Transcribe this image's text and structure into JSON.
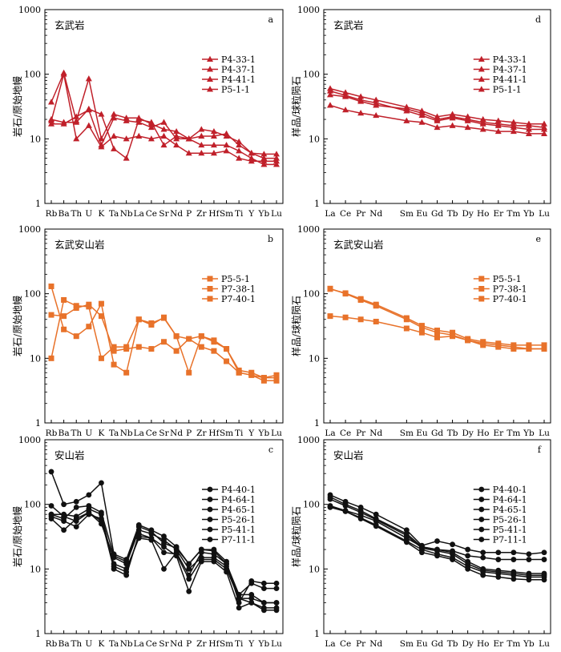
{
  "colors": {
    "red": "#c0202a",
    "orange": "#e8722a",
    "black": "#111111"
  },
  "chart_data": [
    {
      "id": "a",
      "type": "line",
      "panel_label": "a",
      "title": "玄武岩",
      "ylabel": "岩石/原始地幔",
      "yscale": "log",
      "ylim": [
        1,
        1000
      ],
      "yticks": [
        "1",
        "10",
        "100",
        "1000"
      ],
      "categories": [
        "Rb",
        "Ba",
        "Th",
        "U",
        "K",
        "Ta",
        "Nb",
        "La",
        "Ce",
        "Sr",
        "Nd",
        "P",
        "Zr",
        "Hf",
        "Sm",
        "Ti",
        "Y",
        "Yb",
        "Lu"
      ],
      "color": "red",
      "marker": "triangle",
      "legend_position": "top-right",
      "series": [
        {
          "name": "P4-33-1",
          "values": [
            37,
            105,
            19,
            85,
            10,
            24,
            21,
            21,
            17,
            14,
            13,
            10,
            14,
            13,
            11,
            9,
            6,
            5.8,
            5.8
          ]
        },
        {
          "name": "P4-37-1",
          "values": [
            19,
            100,
            10,
            16,
            7.5,
            11,
            10,
            11,
            10,
            11,
            8,
            6,
            6,
            6,
            6.5,
            5,
            4.5,
            4.5,
            4.5
          ]
        },
        {
          "name": "P4-41-1",
          "values": [
            20,
            18,
            18,
            29,
            24,
            7,
            5,
            20,
            18,
            8,
            11,
            10,
            8,
            8,
            8,
            6.5,
            5,
            4,
            4
          ]
        },
        {
          "name": "P5-1-1",
          "values": [
            17,
            17,
            22,
            28,
            8,
            21,
            19,
            18,
            15,
            18,
            10,
            10,
            11,
            11,
            12,
            8,
            6,
            5,
            5
          ]
        }
      ]
    },
    {
      "id": "d",
      "type": "line",
      "panel_label": "d",
      "title": "玄武岩",
      "ylabel": "样品/球粒陨石",
      "yscale": "log",
      "ylim": [
        1,
        1000
      ],
      "yticks": [
        "1",
        "10",
        "100",
        "1000"
      ],
      "categories": [
        "La",
        "Ce",
        "Pr",
        "Nd",
        "",
        "Sm",
        "Eu",
        "Gd",
        "Tb",
        "Dy",
        "Ho",
        "Er",
        "Tm",
        "Yb",
        "Lu"
      ],
      "color": "red",
      "marker": "triangle",
      "legend_position": "top-right",
      "series": [
        {
          "name": "P4-33-1",
          "values": [
            60,
            52,
            45,
            40,
            null,
            31,
            27,
            22,
            24,
            22,
            20,
            19,
            18,
            17,
            17
          ]
        },
        {
          "name": "P4-37-1",
          "values": [
            33,
            28,
            25,
            23,
            null,
            19,
            18,
            15,
            16,
            15,
            14,
            13,
            13,
            12,
            12
          ]
        },
        {
          "name": "P4-41-1",
          "values": [
            55,
            47,
            40,
            36,
            null,
            27,
            23,
            19,
            21,
            19,
            17,
            16,
            15,
            14,
            14
          ]
        },
        {
          "name": "P5-1-1",
          "values": [
            48,
            45,
            38,
            33,
            null,
            29,
            25,
            20,
            22,
            20,
            18,
            17,
            16,
            16,
            15
          ]
        }
      ]
    },
    {
      "id": "b",
      "type": "line",
      "panel_label": "b",
      "title": "玄武安山岩",
      "ylabel": "岩石/原始地幔",
      "yscale": "log",
      "ylim": [
        1,
        1000
      ],
      "yticks": [
        "1",
        "10",
        "100",
        "1000"
      ],
      "categories": [
        "Rb",
        "Ba",
        "Th",
        "U",
        "K",
        "Ta",
        "Nb",
        "La",
        "Ce",
        "Sr",
        "Nd",
        "P",
        "Zr",
        "Hf",
        "Sm",
        "Ti",
        "Y",
        "Yb",
        "Lu"
      ],
      "color": "orange",
      "marker": "square",
      "legend_position": "top-right",
      "series": [
        {
          "name": "P5-5-1",
          "values": [
            130,
            28,
            22,
            31,
            70,
            8,
            6,
            40,
            33,
            43,
            22,
            6,
            22,
            18,
            14,
            6,
            5.5,
            4.5,
            4.5
          ]
        },
        {
          "name": "P7-38-1",
          "values": [
            10,
            80,
            65,
            63,
            10,
            15,
            15,
            40,
            35,
            42,
            22,
            20,
            22,
            19,
            14,
            6.5,
            6,
            5,
            5.5
          ]
        },
        {
          "name": "P7-40-1",
          "values": [
            47,
            45,
            60,
            68,
            45,
            13,
            14,
            15,
            14,
            18,
            13,
            20,
            15,
            13,
            9,
            6,
            5.5,
            5,
            5
          ]
        }
      ]
    },
    {
      "id": "e",
      "type": "line",
      "panel_label": "e",
      "title": "玄武安山岩",
      "ylabel": "样品/球粒陨石",
      "yscale": "log",
      "ylim": [
        1,
        1000
      ],
      "yticks": [
        "1",
        "10",
        "100",
        "1000"
      ],
      "categories": [
        "La",
        "Ce",
        "Pr",
        "Nd",
        "",
        "Sm",
        "Eu",
        "Gd",
        "Tb",
        "Dy",
        "Ho",
        "Er",
        "Tm",
        "Yb",
        "Lu"
      ],
      "color": "orange",
      "marker": "square",
      "legend_position": "top-right",
      "series": [
        {
          "name": "P5-5-1",
          "values": [
            120,
            100,
            80,
            65,
            null,
            40,
            30,
            25,
            23,
            19,
            17,
            16,
            15,
            14,
            14
          ]
        },
        {
          "name": "P7-38-1",
          "values": [
            118,
            102,
            83,
            68,
            null,
            42,
            32,
            27,
            25,
            20,
            18,
            17,
            16,
            16,
            16
          ]
        },
        {
          "name": "P7-40-1",
          "values": [
            45,
            43,
            40,
            37,
            null,
            29,
            25,
            21,
            22,
            19,
            16,
            15,
            14,
            14,
            14
          ]
        }
      ]
    },
    {
      "id": "c",
      "type": "line",
      "panel_label": "c",
      "title": "安山岩",
      "ylabel": "岩石/原始地幔",
      "yscale": "log",
      "ylim": [
        1,
        1000
      ],
      "yticks": [
        "1",
        "10",
        "100",
        "1000"
      ],
      "categories": [
        "Rb",
        "Ba",
        "Th",
        "U",
        "K",
        "Ta",
        "Nb",
        "La",
        "Ce",
        "Sr",
        "Nd",
        "P",
        "Zr",
        "Hf",
        "Sm",
        "Ti",
        "Y",
        "Yb",
        "Lu"
      ],
      "color": "black",
      "marker": "circle",
      "legend_position": "top-right",
      "series": [
        {
          "name": "P4-40-1",
          "values": [
            320,
            100,
            110,
            140,
            215,
            17,
            14,
            48,
            40,
            32,
            22,
            12,
            20,
            20,
            13,
            3,
            6.5,
            6,
            6
          ]
        },
        {
          "name": "P4-64-1",
          "values": [
            65,
            55,
            45,
            70,
            60,
            10,
            8,
            35,
            30,
            22,
            16,
            4.5,
            13,
            13,
            9,
            2.5,
            3,
            2.3,
            2.3
          ]
        },
        {
          "name": "P4-65-1",
          "values": [
            95,
            65,
            55,
            75,
            55,
            12,
            10,
            30,
            28,
            10,
            18,
            8,
            18,
            17,
            12,
            3.5,
            3.5,
            3,
            3
          ]
        },
        {
          "name": "P5-26-1",
          "values": [
            60,
            40,
            60,
            75,
            50,
            15,
            12,
            40,
            35,
            28,
            20,
            10,
            15,
            15,
            11,
            4,
            6,
            5,
            5
          ]
        },
        {
          "name": "P5-41-1",
          "values": [
            70,
            70,
            65,
            85,
            70,
            11,
            9,
            32,
            30,
            18,
            17,
            7,
            14,
            14,
            10,
            3.5,
            3,
            2.5,
            2.5
          ]
        },
        {
          "name": "P7-11-1",
          "values": [
            70,
            60,
            90,
            95,
            75,
            16,
            13,
            45,
            38,
            25,
            21,
            12,
            20,
            19,
            12,
            4,
            4,
            3,
            3
          ]
        }
      ]
    },
    {
      "id": "f",
      "type": "line",
      "panel_label": "f",
      "title": "安山岩",
      "ylabel": "样品/球粒陨石",
      "yscale": "log",
      "ylim": [
        1,
        1000
      ],
      "yticks": [
        "1",
        "10",
        "100",
        "1000"
      ],
      "categories": [
        "La",
        "Ce",
        "Pr",
        "Nd",
        "",
        "Sm",
        "Eu",
        "Gd",
        "Tb",
        "Dy",
        "Ho",
        "Er",
        "Tm",
        "Yb",
        "Lu"
      ],
      "color": "black",
      "marker": "circle",
      "legend_position": "top-right",
      "series": [
        {
          "name": "P4-40-1",
          "values": [
            140,
            110,
            90,
            70,
            null,
            40,
            23,
            27,
            24,
            20,
            18,
            18,
            18,
            17,
            18
          ]
        },
        {
          "name": "P4-64-1",
          "values": [
            90,
            78,
            62,
            48,
            null,
            27,
            20,
            17,
            15,
            11,
            9,
            8.5,
            8,
            7.5,
            7.5
          ]
        },
        {
          "name": "P4-65-1",
          "values": [
            130,
            100,
            80,
            60,
            null,
            35,
            22,
            20,
            18,
            13,
            10,
            9.5,
            9,
            8.5,
            8.5
          ]
        },
        {
          "name": "P5-26-1",
          "values": [
            95,
            80,
            68,
            55,
            null,
            30,
            22,
            20,
            19,
            16,
            15,
            14,
            14,
            14,
            14
          ]
        },
        {
          "name": "P5-41-1",
          "values": [
            92,
            78,
            60,
            46,
            null,
            26,
            18,
            16,
            14,
            10,
            8,
            7.5,
            7,
            6.8,
            6.8
          ]
        },
        {
          "name": "P7-11-1",
          "values": [
            120,
            95,
            75,
            58,
            null,
            33,
            21,
            19,
            17,
            12,
            9.5,
            9,
            8.5,
            8,
            8
          ]
        }
      ]
    }
  ]
}
